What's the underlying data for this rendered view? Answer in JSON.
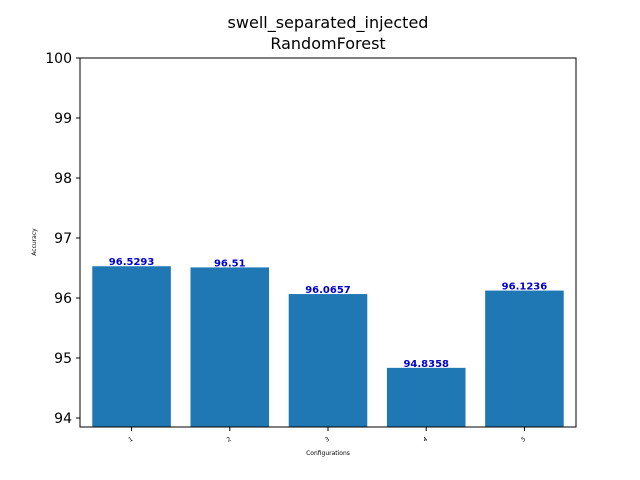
{
  "chart_data": {
    "type": "bar",
    "title_lines": [
      "swell_separated_injected",
      "RandomForest"
    ],
    "xlabel": "Configurations",
    "ylabel": "Accuracy",
    "categories": [
      "1",
      "2",
      "3",
      "4",
      "5"
    ],
    "values": [
      96.5293,
      96.51,
      96.0657,
      94.8358,
      96.1236
    ],
    "value_labels": [
      "96.5293",
      "96.51",
      "96.0657",
      "94.8358",
      "96.1236"
    ],
    "ylim": [
      93.85,
      100
    ],
    "yticks": [
      94,
      95,
      96,
      97,
      98,
      99,
      100
    ],
    "grid": false,
    "bar_color": "#1f77b4",
    "label_color": "#0000cc"
  }
}
